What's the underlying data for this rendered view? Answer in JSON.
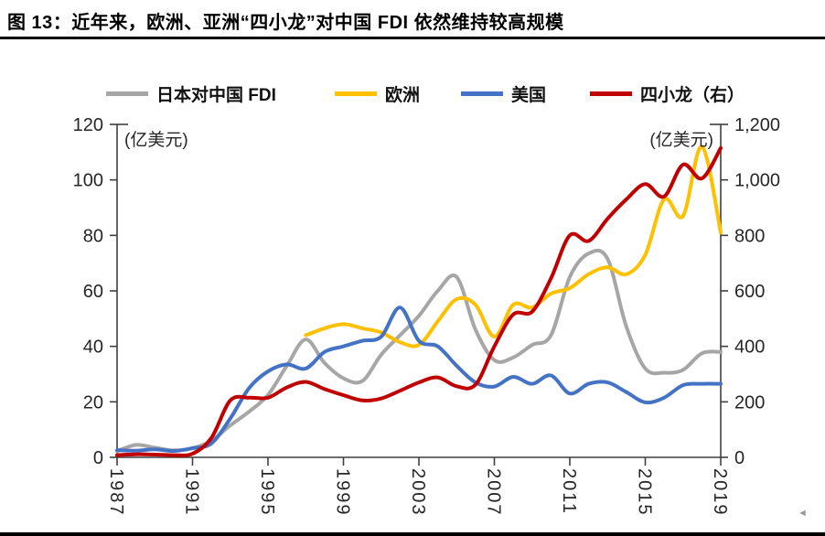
{
  "page": {
    "title": "图 13：近年来，欧洲、亚洲“四小龙”对中国 FDI 依然维持较高规模"
  },
  "chart_data": {
    "type": "line",
    "x_range": [
      1987,
      2019
    ],
    "x_ticks": [
      "1987",
      "1991",
      "1995",
      "1999",
      "2003",
      "2007",
      "2011",
      "2015",
      "2019"
    ],
    "left_axis": {
      "unit": "(亿美元)",
      "min": 0,
      "max": 120,
      "ticks": [
        "0",
        "20",
        "40",
        "60",
        "80",
        "100",
        "120"
      ]
    },
    "right_axis": {
      "unit": "(亿美元)",
      "min": 0,
      "max": 1200,
      "ticks": [
        "0",
        "200",
        "400",
        "600",
        "800",
        "1,000",
        "1,200"
      ]
    },
    "grid": false,
    "legend_position": "top",
    "series": [
      {
        "name": "日本对中国 FDI",
        "color": "#a6a6a6",
        "axis": "left",
        "points": [
          [
            1987,
            2.2
          ],
          [
            1988,
            4.5
          ],
          [
            1989,
            3.5
          ],
          [
            1990,
            2.5
          ],
          [
            1991,
            3.3
          ],
          [
            1992,
            6
          ],
          [
            1993,
            11.5
          ],
          [
            1994,
            16.5
          ],
          [
            1995,
            22.5
          ],
          [
            1996,
            33
          ],
          [
            1997,
            42.5
          ],
          [
            1998,
            34
          ],
          [
            1999,
            28.5
          ],
          [
            2000,
            27.5
          ],
          [
            2001,
            37
          ],
          [
            2002,
            44
          ],
          [
            2003,
            51
          ],
          [
            2004,
            60
          ],
          [
            2005,
            65
          ],
          [
            2006,
            46
          ],
          [
            2007,
            35
          ],
          [
            2008,
            36
          ],
          [
            2009,
            40.5
          ],
          [
            2010,
            44
          ],
          [
            2011,
            65
          ],
          [
            2012,
            73.5
          ],
          [
            2013,
            71.5
          ],
          [
            2014,
            47
          ],
          [
            2015,
            32
          ],
          [
            2016,
            30.5
          ],
          [
            2017,
            31.5
          ],
          [
            2018,
            37.5
          ],
          [
            2019,
            38
          ]
        ]
      },
      {
        "name": "欧洲",
        "color": "#ffc000",
        "axis": "left",
        "points": [
          [
            1997,
            44
          ],
          [
            1998,
            46.5
          ],
          [
            1999,
            48
          ],
          [
            2000,
            46.5
          ],
          [
            2001,
            45
          ],
          [
            2002,
            41.5
          ],
          [
            2003,
            40.5
          ],
          [
            2004,
            49
          ],
          [
            2005,
            57
          ],
          [
            2006,
            55
          ],
          [
            2007,
            43.5
          ],
          [
            2008,
            55
          ],
          [
            2009,
            54
          ],
          [
            2010,
            59
          ],
          [
            2011,
            61
          ],
          [
            2012,
            66
          ],
          [
            2013,
            68.5
          ],
          [
            2014,
            66
          ],
          [
            2015,
            73
          ],
          [
            2016,
            93
          ],
          [
            2017,
            87
          ],
          [
            2018,
            112
          ],
          [
            2019,
            81
          ]
        ]
      },
      {
        "name": "美国",
        "color": "#4472c4",
        "axis": "left",
        "points": [
          [
            1987,
            2.6
          ],
          [
            1988,
            2.4
          ],
          [
            1989,
            2.9
          ],
          [
            1990,
            2.3
          ],
          [
            1991,
            3.3
          ],
          [
            1992,
            5
          ],
          [
            1993,
            14
          ],
          [
            1994,
            25
          ],
          [
            1995,
            31
          ],
          [
            1996,
            33.5
          ],
          [
            1997,
            32
          ],
          [
            1998,
            38
          ],
          [
            1999,
            40
          ],
          [
            2000,
            42
          ],
          [
            2001,
            43.5
          ],
          [
            2002,
            54
          ],
          [
            2003,
            42
          ],
          [
            2004,
            40
          ],
          [
            2005,
            33
          ],
          [
            2006,
            27
          ],
          [
            2007,
            25.5
          ],
          [
            2008,
            29
          ],
          [
            2009,
            26.5
          ],
          [
            2010,
            29.5
          ],
          [
            2011,
            23
          ],
          [
            2012,
            26.5
          ],
          [
            2013,
            27
          ],
          [
            2014,
            23.5
          ],
          [
            2015,
            19.8
          ],
          [
            2016,
            21.5
          ],
          [
            2017,
            26
          ],
          [
            2018,
            26.5
          ],
          [
            2019,
            26.5
          ]
        ]
      },
      {
        "name": "四小龙（右）",
        "color": "#c00000",
        "axis": "right",
        "points": [
          [
            1987,
            8
          ],
          [
            1988,
            11
          ],
          [
            1989,
            10
          ],
          [
            1990,
            8
          ],
          [
            1991,
            13
          ],
          [
            1992,
            70
          ],
          [
            1993,
            205
          ],
          [
            1994,
            215
          ],
          [
            1995,
            215
          ],
          [
            1996,
            252
          ],
          [
            1997,
            272
          ],
          [
            1998,
            246
          ],
          [
            1999,
            224
          ],
          [
            2000,
            205
          ],
          [
            2001,
            212
          ],
          [
            2002,
            240
          ],
          [
            2003,
            270
          ],
          [
            2004,
            288
          ],
          [
            2005,
            256
          ],
          [
            2006,
            262
          ],
          [
            2007,
            400
          ],
          [
            2008,
            515
          ],
          [
            2009,
            525
          ],
          [
            2010,
            645
          ],
          [
            2011,
            800
          ],
          [
            2012,
            780
          ],
          [
            2013,
            860
          ],
          [
            2014,
            930
          ],
          [
            2015,
            985
          ],
          [
            2016,
            940
          ],
          [
            2017,
            1055
          ],
          [
            2018,
            1005
          ],
          [
            2019,
            1115
          ]
        ]
      }
    ]
  },
  "footer": {
    "scroll_arrow": "◄"
  }
}
